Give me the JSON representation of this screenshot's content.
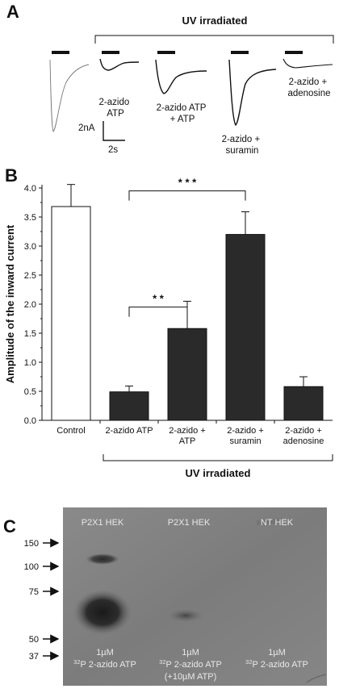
{
  "panels": {
    "a": {
      "letter": "A",
      "uv_label": "UV irradiated",
      "trace_labels": [
        [
          "2-azido",
          "ATP"
        ],
        [
          "2-azido ATP",
          "+ ATP"
        ],
        [
          "2-azido +",
          "suramin"
        ],
        [
          "2-azido +",
          "adenosine"
        ]
      ],
      "scale_y": "2nA",
      "scale_x": "2s"
    },
    "b": {
      "letter": "B",
      "uv_label": "UV irradiated",
      "sig_high": "* * *",
      "sig_low": "* *"
    },
    "c": {
      "letter": "C",
      "lanes": [
        "P2X1 HEK",
        "P2X1 HEK",
        "NT HEK"
      ],
      "markers": [
        "150",
        "100",
        "75",
        "50",
        "37"
      ],
      "conc": [
        "1µM",
        "1µM",
        "1µM"
      ],
      "reagent_sup": "32",
      "reagent": "P 2-azido ATP",
      "lane2_extra": "(+10µM ATP)"
    }
  },
  "chart_data": {
    "type": "bar",
    "ylabel": "Amplitude of the inward current",
    "ylim": [
      0,
      4.0
    ],
    "yticks": [
      "0.0",
      "0.5",
      "1.0",
      "1.5",
      "2.0",
      "2.5",
      "3.0",
      "3.5",
      "4.0"
    ],
    "categories": [
      [
        "Control"
      ],
      [
        "2-azido ATP"
      ],
      [
        "2-azido +",
        "ATP"
      ],
      [
        "2-azido +",
        "suramin"
      ],
      [
        "2-azido +",
        "adenosine"
      ]
    ],
    "values": [
      3.68,
      0.49,
      1.58,
      3.2,
      0.58
    ],
    "errors": [
      0.38,
      0.1,
      0.47,
      0.39,
      0.17
    ],
    "fills": [
      "#ffffff",
      "#2a2a2a",
      "#2a2a2a",
      "#2a2a2a",
      "#2a2a2a"
    ],
    "legend": "none",
    "grid": false
  }
}
